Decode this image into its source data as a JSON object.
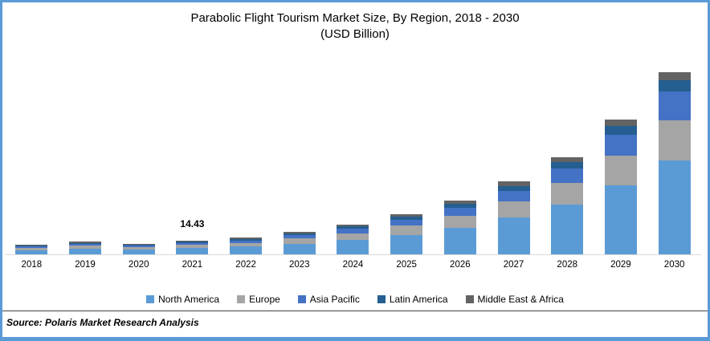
{
  "frame": {
    "border_color": "#5B9BD5",
    "background": "#FFFFFF",
    "axis_line_color": "#D9D9D9",
    "divider_color": "#404040"
  },
  "title": {
    "line1": "Parabolic Flight Tourism Market Size, By Region, 2018 - 2030",
    "line2": "(USD Billion)"
  },
  "source": {
    "label": "Source: Polaris Market Research Analysis"
  },
  "chart_data": {
    "type": "bar",
    "stacked": true,
    "title": "Parabolic Flight Tourism Market Size, By Region, 2018 - 2030",
    "subtitle": "(USD Billion)",
    "xlabel": "",
    "ylabel": "USD Billion",
    "ylim": [
      0,
      200
    ],
    "gridlines": false,
    "y_axis_visible": false,
    "legend_position": "bottom",
    "categories": [
      "2018",
      "2019",
      "2020",
      "2021",
      "2022",
      "2023",
      "2024",
      "2025",
      "2026",
      "2027",
      "2028",
      "2029",
      "2030"
    ],
    "series": [
      {
        "name": "North America",
        "color": "#5B9BD5",
        "values": [
          4.4,
          5.76,
          4.93,
          6.5,
          8.05,
          11.0,
          14.83,
          20.34,
          27.8,
          38.08,
          51.61,
          72.1,
          97.71
        ]
      },
      {
        "name": "Europe",
        "color": "#A5A5A5",
        "values": [
          2.4,
          3.14,
          2.69,
          3.46,
          4.03,
          5.38,
          7.11,
          9.34,
          12.23,
          16.59,
          22.26,
          30.8,
          41.77
        ]
      },
      {
        "name": "Asia Pacific",
        "color": "#4472C4",
        "values": [
          1.4,
          1.83,
          1.57,
          2.02,
          2.45,
          3.39,
          4.48,
          6.23,
          8.34,
          11.31,
          15.38,
          21.42,
          29.3
        ]
      },
      {
        "name": "Latin America",
        "color": "#255E91",
        "values": [
          1.0,
          1.31,
          1.12,
          1.3,
          1.58,
          1.99,
          2.47,
          3.11,
          4.0,
          5.13,
          6.68,
          8.82,
          11.72
        ]
      },
      {
        "name": "Middle East & Africa",
        "color": "#636363",
        "values": [
          0.8,
          1.05,
          0.9,
          1.15,
          1.4,
          1.64,
          2.01,
          2.49,
          3.23,
          4.3,
          5.26,
          6.86,
          8.51
        ]
      }
    ],
    "totals": [
      10.0,
      13.09,
      11.21,
      14.43,
      17.51,
      23.4,
      30.9,
      41.51,
      55.6,
      75.41,
      101.19,
      140.0,
      189.01
    ],
    "annotations": [
      {
        "category": "2021",
        "text": "14.43"
      }
    ]
  }
}
